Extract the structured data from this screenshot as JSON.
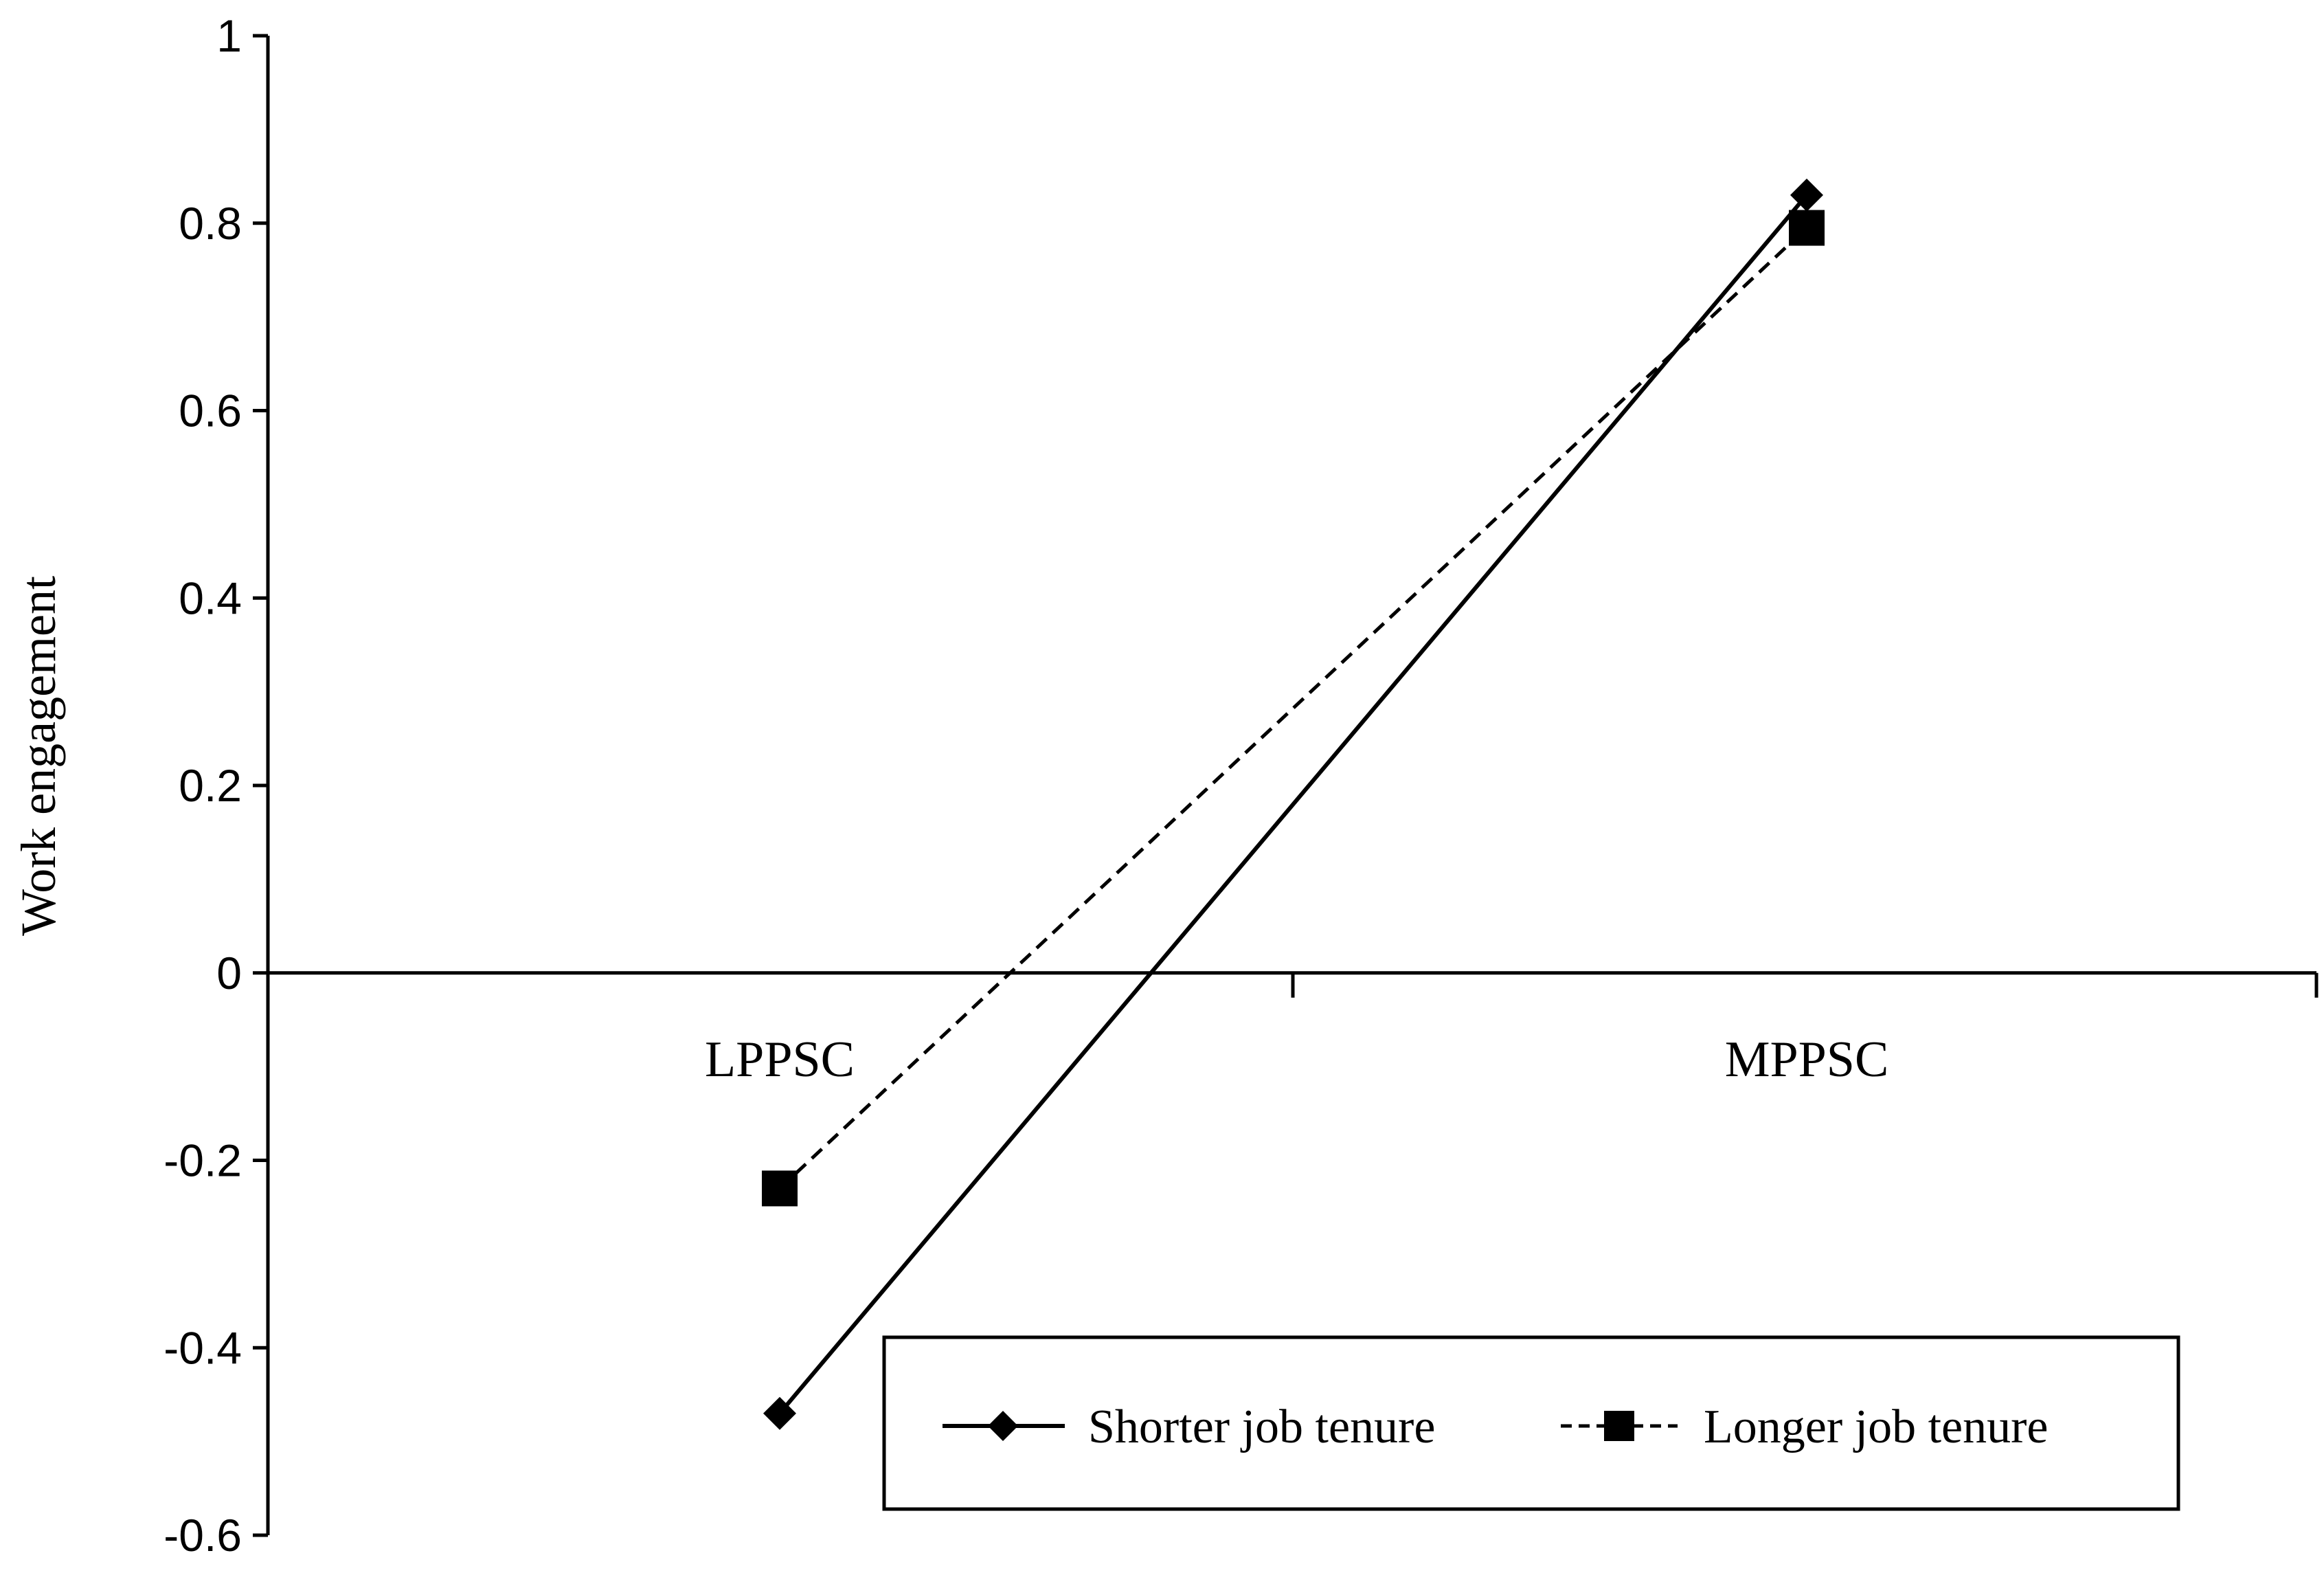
{
  "chart_data": {
    "type": "line",
    "title": "",
    "xlabel": "",
    "ylabel": "Work engagement",
    "categories": [
      "LPPSC",
      "MPPSC"
    ],
    "ylim": [
      -0.6,
      1
    ],
    "yticks": [
      1,
      0.8,
      0.6,
      0.4,
      0.2,
      0,
      -0.2,
      -0.4,
      -0.6
    ],
    "ytick_labels": [
      "1",
      "0.8",
      "0.6",
      "0.4",
      "0.2",
      "0",
      "-0.2",
      "-0.4",
      "-0.6"
    ],
    "grid": false,
    "legend_position": "bottom-right",
    "series": [
      {
        "name": "Shorter job tenure",
        "values": [
          -0.47,
          0.83
        ],
        "marker": "diamond",
        "line_style": "solid",
        "color": "#000000"
      },
      {
        "name": "Longer job tenure",
        "values": [
          -0.23,
          0.795
        ],
        "marker": "square",
        "line_style": "dashed",
        "color": "#000000"
      }
    ]
  }
}
